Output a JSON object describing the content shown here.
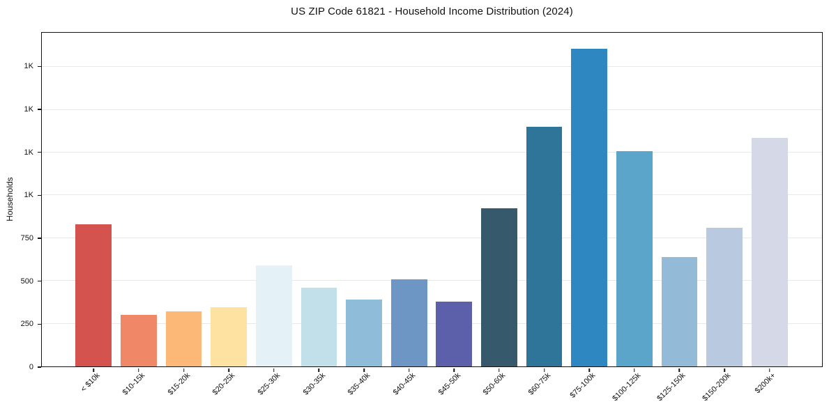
{
  "chart_data": {
    "type": "bar",
    "title": "US ZIP Code 61821 - Household Income Distribution (2024)",
    "xlabel": "",
    "ylabel": "Households",
    "ylim": [
      0,
      1950
    ],
    "grid": "horizontal-only",
    "legend": "none",
    "categories": [
      "< $10k",
      "$10-15k",
      "$15-20k",
      "$20-25k",
      "$25-30k",
      "$30-35k",
      "$35-40k",
      "$40-45k",
      "$45-50k",
      "$50-60k",
      "$60-75k",
      "$75-100k",
      "$100-125k",
      "$125-150k",
      "$150-200k",
      "$200k+"
    ],
    "values": [
      830,
      300,
      320,
      345,
      590,
      460,
      390,
      510,
      380,
      925,
      1400,
      1855,
      1260,
      640,
      810,
      1335
    ],
    "bar_colors": [
      "#d5534f",
      "#f08766",
      "#fbb877",
      "#fde2a2",
      "#e4f1f6",
      "#c1e0ea",
      "#8fbcd8",
      "#6e96c4",
      "#5c5fa9",
      "#365a6c",
      "#2f7599",
      "#2f87c1",
      "#5ba4ca",
      "#93bad7",
      "#b9c9df",
      "#d5d8e6"
    ],
    "yticks": [
      {
        "value": 0,
        "label": "0"
      },
      {
        "value": 250,
        "label": "250"
      },
      {
        "value": 500,
        "label": "500"
      },
      {
        "value": 750,
        "label": "750"
      },
      {
        "value": 1000,
        "label": "1K"
      },
      {
        "value": 1250,
        "label": "1K"
      },
      {
        "value": 1500,
        "label": "1K"
      },
      {
        "value": 1750,
        "label": "1K"
      }
    ],
    "colors": {
      "axis": "#111111",
      "grid": "#e8e8e8",
      "text": "#111111",
      "background": "#ffffff"
    }
  }
}
